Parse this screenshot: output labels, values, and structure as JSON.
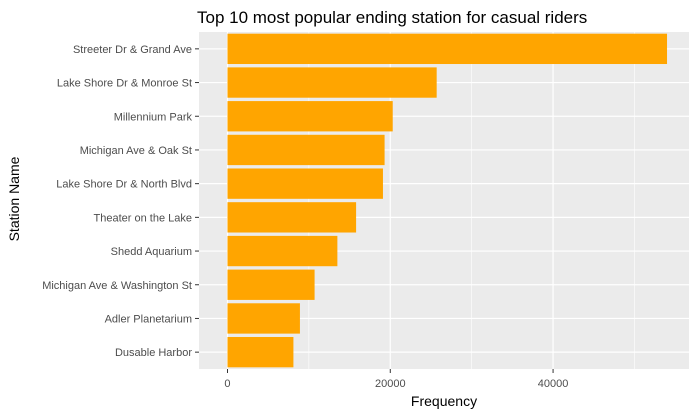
{
  "chart_data": {
    "type": "bar",
    "orientation": "horizontal",
    "title": "Top 10 most popular ending station for casual riders",
    "xlabel": "Frequency",
    "ylabel": "Station Name",
    "categories": [
      "Streeter Dr & Grand Ave",
      "Lake Shore Dr & Monroe St",
      "Millennium Park",
      "Michigan Ave & Oak St",
      "Lake Shore Dr & North Blvd",
      "Theater on the Lake",
      "Shedd Aquarium",
      "Michigan Ave & Washington St",
      "Adler Planetarium",
      "Dusable Harbor"
    ],
    "values": [
      54000,
      25700,
      20300,
      19300,
      19100,
      15800,
      13500,
      10700,
      8900,
      8100
    ],
    "xlim": [
      -3500,
      56700
    ],
    "xticks": [
      0,
      20000,
      40000
    ],
    "xtick_labels": [
      "0",
      "20000",
      "40000"
    ],
    "grid": true,
    "bar_color": "#FFA500",
    "panel_background": "#EBEBEB",
    "grid_color": "#FFFFFF"
  }
}
